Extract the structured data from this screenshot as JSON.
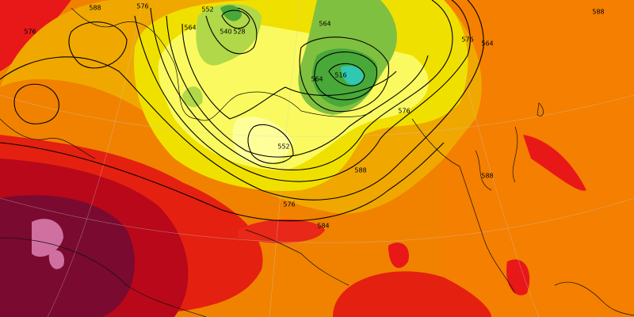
{
  "contour_labels": [
    588,
    576,
    552,
    540,
    564,
    528,
    564,
    576,
    516,
    564,
    552,
    588,
    576,
    584,
    576,
    564,
    588,
    588,
    576
  ]
}
